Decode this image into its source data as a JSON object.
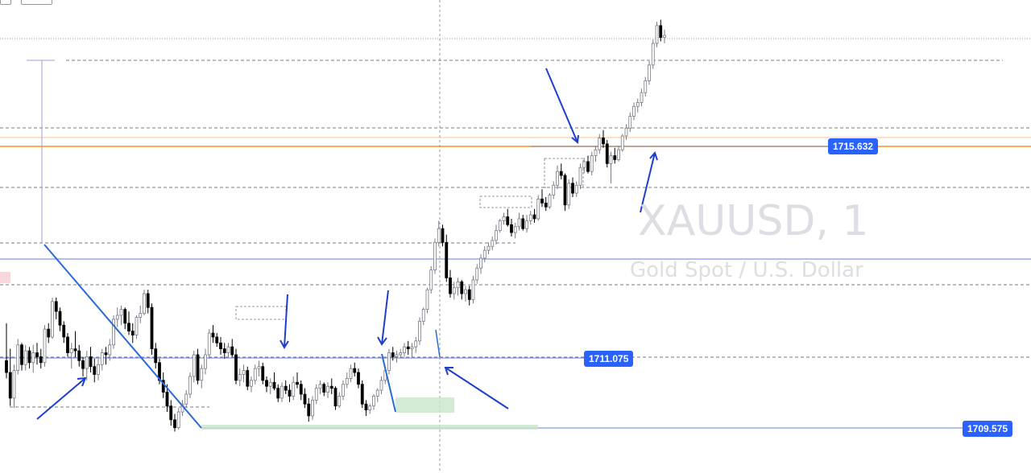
{
  "watermark": {
    "symbol": "XAUUSD, 1",
    "description": "Gold Spot / U.S. Dollar"
  },
  "price_labels": {
    "upper": "1715.632",
    "middle": "1711.075",
    "lower": "1709.575"
  },
  "colors": {
    "up": "#787b86",
    "down": "#000000",
    "drawing": "#2a4fd6",
    "orange_level": "#f7941d",
    "label_bg": "#2962ff",
    "support_zone": "#c8e6c9"
  },
  "chart_data": {
    "type": "candlestick",
    "symbol": "XAUUSD",
    "timeframe": "1",
    "description": "Gold Spot / U.S. Dollar",
    "ylim": [
      1708.3,
      1720.3
    ],
    "marked_levels": [
      1715.632,
      1711.075,
      1709.575
    ],
    "orange_levels": [
      1715.88,
      1715.632
    ],
    "candles": [
      [
        1711.15,
        1712.1,
        1710.7,
        1710.85
      ],
      [
        1710.85,
        1711.45,
        1710.0,
        1710.2
      ],
      [
        1710.2,
        1711.05,
        1709.95,
        1710.9
      ],
      [
        1710.9,
        1711.7,
        1710.8,
        1711.55
      ],
      [
        1711.55,
        1711.6,
        1710.9,
        1711.05
      ],
      [
        1711.05,
        1711.55,
        1710.9,
        1711.4
      ],
      [
        1711.4,
        1711.5,
        1710.95,
        1711.1
      ],
      [
        1711.1,
        1711.55,
        1710.85,
        1711.35
      ],
      [
        1711.35,
        1711.6,
        1711.05,
        1711.25
      ],
      [
        1711.25,
        1711.45,
        1710.95,
        1711.1
      ],
      [
        1711.1,
        1712.05,
        1711.0,
        1711.95
      ],
      [
        1711.95,
        1712.1,
        1711.6,
        1711.75
      ],
      [
        1711.75,
        1712.75,
        1711.7,
        1712.65
      ],
      [
        1712.65,
        1712.75,
        1712.2,
        1712.4
      ],
      [
        1712.4,
        1712.5,
        1711.9,
        1712.05
      ],
      [
        1712.05,
        1712.15,
        1711.6,
        1711.75
      ],
      [
        1711.75,
        1711.85,
        1711.25,
        1711.35
      ],
      [
        1711.35,
        1711.6,
        1710.95,
        1711.45
      ],
      [
        1711.45,
        1711.9,
        1711.25,
        1711.4
      ],
      [
        1711.4,
        1711.55,
        1711.0,
        1711.15
      ],
      [
        1711.15,
        1711.25,
        1710.75,
        1710.95
      ],
      [
        1710.95,
        1711.4,
        1710.65,
        1711.25
      ],
      [
        1711.25,
        1711.5,
        1710.85,
        1711.0
      ],
      [
        1711.0,
        1711.2,
        1710.6,
        1710.8
      ],
      [
        1710.8,
        1711.2,
        1710.65,
        1711.05
      ],
      [
        1711.05,
        1711.45,
        1710.9,
        1711.35
      ],
      [
        1711.35,
        1711.5,
        1711.05,
        1711.3
      ],
      [
        1711.3,
        1711.7,
        1711.15,
        1711.55
      ],
      [
        1711.55,
        1712.3,
        1711.45,
        1712.2
      ],
      [
        1712.2,
        1712.5,
        1712.0,
        1712.3
      ],
      [
        1712.3,
        1712.55,
        1712.05,
        1712.45
      ],
      [
        1712.45,
        1712.5,
        1711.95,
        1712.1
      ],
      [
        1712.1,
        1712.4,
        1711.8,
        1711.9
      ],
      [
        1711.9,
        1712.1,
        1711.6,
        1711.8
      ],
      [
        1711.8,
        1712.3,
        1711.7,
        1712.25
      ],
      [
        1712.25,
        1712.55,
        1712.1,
        1712.35
      ],
      [
        1712.35,
        1712.95,
        1712.3,
        1712.85
      ],
      [
        1712.85,
        1712.95,
        1712.35,
        1712.5
      ],
      [
        1712.5,
        1712.6,
        1711.3,
        1711.45
      ],
      [
        1711.45,
        1711.6,
        1710.95,
        1711.1
      ],
      [
        1711.1,
        1711.2,
        1710.55,
        1710.65
      ],
      [
        1710.65,
        1710.85,
        1710.2,
        1710.35
      ],
      [
        1710.35,
        1710.55,
        1709.85,
        1710.0
      ],
      [
        1710.0,
        1710.15,
        1709.5,
        1709.65
      ],
      [
        1709.65,
        1709.8,
        1709.35,
        1709.45
      ],
      [
        1709.45,
        1709.95,
        1709.4,
        1709.85
      ],
      [
        1709.85,
        1710.15,
        1709.75,
        1710.05
      ],
      [
        1710.05,
        1710.4,
        1709.95,
        1710.3
      ],
      [
        1710.3,
        1710.85,
        1710.2,
        1710.75
      ],
      [
        1710.75,
        1711.4,
        1710.6,
        1711.3
      ],
      [
        1711.3,
        1711.45,
        1710.55,
        1710.65
      ],
      [
        1710.65,
        1711.05,
        1710.45,
        1710.95
      ],
      [
        1710.95,
        1711.45,
        1710.8,
        1711.3
      ],
      [
        1711.3,
        1711.95,
        1711.2,
        1711.85
      ],
      [
        1711.85,
        1712.05,
        1711.6,
        1711.75
      ],
      [
        1711.75,
        1711.85,
        1711.5,
        1711.6
      ],
      [
        1711.6,
        1711.75,
        1711.3,
        1711.45
      ],
      [
        1711.45,
        1711.6,
        1711.2,
        1711.35
      ],
      [
        1711.35,
        1711.6,
        1711.25,
        1711.5
      ],
      [
        1711.5,
        1711.7,
        1711.25,
        1711.3
      ],
      [
        1711.3,
        1711.45,
        1710.55,
        1710.65
      ],
      [
        1710.65,
        1710.95,
        1710.5,
        1710.8
      ],
      [
        1710.8,
        1711.05,
        1710.6,
        1710.9
      ],
      [
        1710.9,
        1711.0,
        1710.4,
        1710.5
      ],
      [
        1710.5,
        1710.75,
        1710.35,
        1710.65
      ],
      [
        1710.65,
        1711.05,
        1710.55,
        1710.95
      ],
      [
        1710.95,
        1711.15,
        1710.75,
        1711.0
      ],
      [
        1711.0,
        1711.1,
        1710.55,
        1710.65
      ],
      [
        1710.65,
        1710.75,
        1710.35,
        1710.5
      ],
      [
        1710.5,
        1710.7,
        1710.3,
        1710.6
      ],
      [
        1710.6,
        1710.85,
        1710.4,
        1710.45
      ],
      [
        1710.45,
        1710.55,
        1710.1,
        1710.2
      ],
      [
        1710.2,
        1710.6,
        1710.1,
        1710.5
      ],
      [
        1710.5,
        1710.65,
        1710.3,
        1710.4
      ],
      [
        1710.4,
        1710.55,
        1710.1,
        1710.25
      ],
      [
        1710.25,
        1710.75,
        1710.15,
        1710.6
      ],
      [
        1710.6,
        1710.85,
        1710.45,
        1710.55
      ],
      [
        1710.55,
        1710.65,
        1710.15,
        1710.3
      ],
      [
        1710.3,
        1710.45,
        1709.95,
        1710.05
      ],
      [
        1710.05,
        1710.2,
        1709.6,
        1709.75
      ],
      [
        1709.75,
        1710.25,
        1709.65,
        1710.15
      ],
      [
        1710.15,
        1710.55,
        1710.05,
        1710.45
      ],
      [
        1710.45,
        1710.65,
        1710.3,
        1710.55
      ],
      [
        1710.55,
        1710.6,
        1710.25,
        1710.35
      ],
      [
        1710.35,
        1710.6,
        1710.2,
        1710.5
      ],
      [
        1710.5,
        1710.7,
        1710.3,
        1710.45
      ],
      [
        1710.45,
        1710.5,
        1709.9,
        1710.0
      ],
      [
        1710.0,
        1710.35,
        1709.95,
        1710.25
      ],
      [
        1710.25,
        1710.65,
        1710.15,
        1710.55
      ],
      [
        1710.55,
        1710.85,
        1710.45,
        1710.7
      ],
      [
        1710.7,
        1711.05,
        1710.6,
        1710.95
      ],
      [
        1710.95,
        1711.1,
        1710.75,
        1710.85
      ],
      [
        1710.85,
        1710.95,
        1710.45,
        1710.55
      ],
      [
        1710.55,
        1710.65,
        1709.95,
        1710.05
      ],
      [
        1710.05,
        1710.15,
        1709.75,
        1709.9
      ],
      [
        1709.9,
        1710.05,
        1709.8,
        1710.0
      ],
      [
        1710.0,
        1710.3,
        1709.9,
        1710.25
      ],
      [
        1710.25,
        1710.45,
        1710.1,
        1710.4
      ],
      [
        1710.4,
        1710.75,
        1710.3,
        1710.65
      ],
      [
        1710.65,
        1711.0,
        1710.55,
        1710.9
      ],
      [
        1710.9,
        1711.45,
        1710.8,
        1711.35
      ],
      [
        1711.35,
        1711.5,
        1711.15,
        1711.25
      ],
      [
        1711.25,
        1711.4,
        1711.1,
        1711.3
      ],
      [
        1711.3,
        1711.45,
        1711.2,
        1711.35
      ],
      [
        1711.35,
        1711.6,
        1711.25,
        1711.5
      ],
      [
        1711.5,
        1711.65,
        1711.3,
        1711.45
      ],
      [
        1711.45,
        1711.6,
        1711.25,
        1711.5
      ],
      [
        1711.5,
        1711.75,
        1711.35,
        1711.65
      ],
      [
        1711.65,
        1712.25,
        1711.55,
        1712.15
      ],
      [
        1712.15,
        1712.5,
        1712.05,
        1712.45
      ],
      [
        1712.45,
        1713.0,
        1712.35,
        1712.95
      ],
      [
        1712.95,
        1713.55,
        1712.85,
        1713.45
      ],
      [
        1713.45,
        1714.25,
        1713.35,
        1714.15
      ],
      [
        1714.15,
        1714.7,
        1714.05,
        1714.5
      ],
      [
        1714.5,
        1714.6,
        1714.05,
        1714.15
      ],
      [
        1714.15,
        1714.35,
        1713.15,
        1713.25
      ],
      [
        1713.25,
        1713.45,
        1712.75,
        1712.85
      ],
      [
        1712.85,
        1713.15,
        1712.7,
        1713.0
      ],
      [
        1713.0,
        1713.25,
        1712.8,
        1713.15
      ],
      [
        1713.15,
        1713.2,
        1712.7,
        1712.85
      ],
      [
        1712.85,
        1713.05,
        1712.65,
        1712.95
      ],
      [
        1712.95,
        1713.05,
        1712.55,
        1712.7
      ],
      [
        1712.7,
        1713.3,
        1712.6,
        1713.2
      ],
      [
        1713.2,
        1713.6,
        1713.1,
        1713.5
      ],
      [
        1713.5,
        1713.85,
        1713.35,
        1713.75
      ],
      [
        1713.75,
        1714.05,
        1713.65,
        1713.95
      ],
      [
        1713.95,
        1714.15,
        1713.85,
        1714.05
      ],
      [
        1714.05,
        1714.3,
        1713.95,
        1714.2
      ],
      [
        1714.2,
        1714.6,
        1714.1,
        1714.45
      ],
      [
        1714.45,
        1714.75,
        1714.4,
        1714.7
      ],
      [
        1714.7,
        1714.9,
        1714.6,
        1714.8
      ],
      [
        1714.8,
        1715.0,
        1714.55,
        1714.6
      ],
      [
        1714.6,
        1714.75,
        1714.3,
        1714.4
      ],
      [
        1714.4,
        1714.65,
        1714.25,
        1714.55
      ],
      [
        1714.55,
        1714.9,
        1714.45,
        1714.75
      ],
      [
        1714.75,
        1714.85,
        1714.45,
        1714.5
      ],
      [
        1714.5,
        1714.85,
        1714.4,
        1714.7
      ],
      [
        1714.7,
        1714.95,
        1714.6,
        1714.85
      ],
      [
        1714.85,
        1715.0,
        1714.65,
        1714.75
      ],
      [
        1714.75,
        1715.35,
        1714.7,
        1715.25
      ],
      [
        1715.25,
        1715.5,
        1715.05,
        1715.15
      ],
      [
        1715.15,
        1715.3,
        1714.95,
        1715.05
      ],
      [
        1715.05,
        1715.4,
        1715.0,
        1715.35
      ],
      [
        1715.35,
        1715.7,
        1715.25,
        1715.6
      ],
      [
        1715.6,
        1716.1,
        1715.5,
        1715.95
      ],
      [
        1715.95,
        1716.15,
        1715.75,
        1715.85
      ],
      [
        1715.85,
        1715.9,
        1714.95,
        1715.1
      ],
      [
        1715.1,
        1715.75,
        1715.0,
        1715.65
      ],
      [
        1715.65,
        1715.8,
        1715.3,
        1715.4
      ],
      [
        1715.4,
        1715.7,
        1715.3,
        1715.6
      ],
      [
        1715.6,
        1716.15,
        1715.5,
        1716.05
      ],
      [
        1716.05,
        1716.3,
        1715.9,
        1716.2
      ],
      [
        1716.2,
        1716.35,
        1715.9,
        1715.95
      ],
      [
        1715.95,
        1716.45,
        1715.85,
        1716.35
      ],
      [
        1716.35,
        1716.6,
        1716.2,
        1716.5
      ],
      [
        1716.5,
        1716.9,
        1716.4,
        1716.8
      ],
      [
        1716.8,
        1717.0,
        1716.55,
        1716.65
      ],
      [
        1716.65,
        1716.75,
        1716.05,
        1716.15
      ],
      [
        1716.15,
        1716.45,
        1715.65,
        1716.35
      ],
      [
        1716.35,
        1716.55,
        1716.15,
        1716.25
      ],
      [
        1716.25,
        1716.6,
        1716.2,
        1716.5
      ],
      [
        1716.5,
        1716.9,
        1716.45,
        1716.85
      ],
      [
        1716.85,
        1717.15,
        1716.75,
        1717.05
      ],
      [
        1717.05,
        1717.45,
        1716.95,
        1717.35
      ],
      [
        1717.35,
        1717.7,
        1717.25,
        1717.6
      ],
      [
        1717.6,
        1717.8,
        1717.45,
        1717.7
      ],
      [
        1717.7,
        1718.05,
        1717.6,
        1717.95
      ],
      [
        1717.95,
        1718.35,
        1717.85,
        1718.25
      ],
      [
        1718.25,
        1718.75,
        1718.15,
        1718.65
      ],
      [
        1718.65,
        1719.3,
        1718.55,
        1719.2
      ],
      [
        1719.2,
        1719.75,
        1719.1,
        1719.65
      ],
      [
        1719.65,
        1719.8,
        1719.25,
        1719.35
      ],
      [
        1719.35,
        1719.55,
        1719.2,
        1719.4
      ]
    ]
  }
}
